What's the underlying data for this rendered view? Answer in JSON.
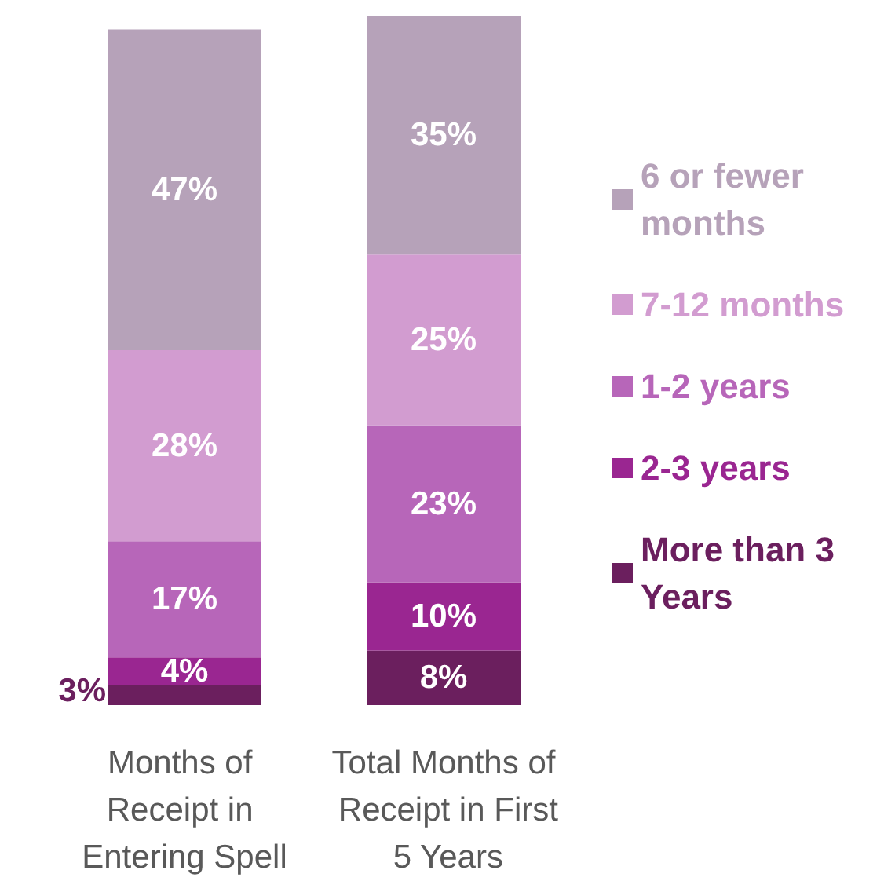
{
  "chart_data": {
    "type": "bar",
    "stacked": true,
    "legend": "right",
    "categories": [
      "Months of Receipt in Entering Spell",
      "Total Months of Receipt in First 5 Years"
    ],
    "series": [
      {
        "name": "More than 3 Years",
        "color": "#6b1f5e",
        "values": [
          3,
          8
        ],
        "value_labels": [
          "3%",
          "8%"
        ]
      },
      {
        "name": "2-3 years",
        "color": "#9a2691",
        "values": [
          4,
          10
        ],
        "value_labels": [
          "4%",
          "10%"
        ]
      },
      {
        "name": "1-2 years",
        "color": "#b766b9",
        "values": [
          17,
          23
        ],
        "value_labels": [
          "17%",
          "23%"
        ]
      },
      {
        "name": "7-12 months",
        "color": "#d29cd0",
        "values": [
          28,
          25
        ],
        "value_labels": [
          "28%",
          "25%"
        ]
      },
      {
        "name": "6 or fewer months",
        "color": "#b6a2b9",
        "values": [
          47,
          35
        ],
        "value_labels": [
          "47%",
          "35%"
        ]
      }
    ]
  }
}
